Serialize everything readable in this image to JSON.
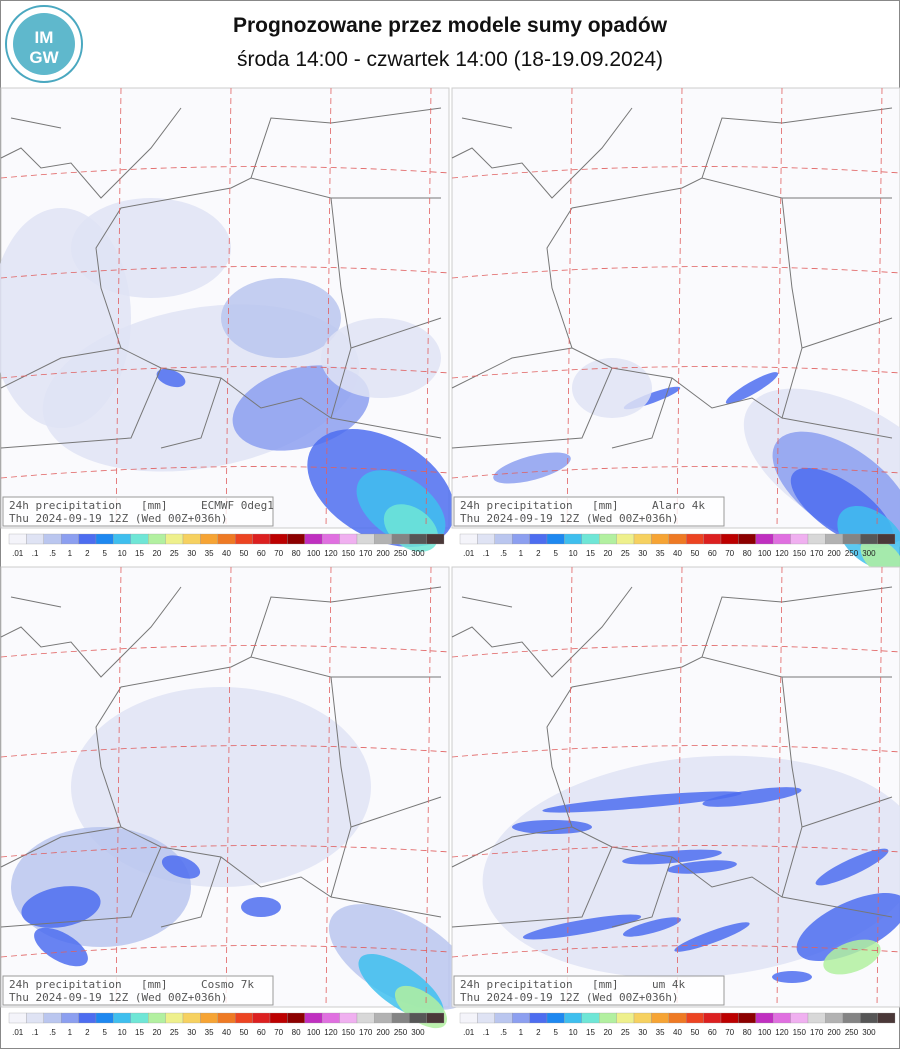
{
  "header": {
    "title": "Prognozowane przez modele sumy opadów",
    "subtitle": "środa 14:00 - czwartek 14:00 (18-19.09.2024)",
    "logo": [
      "IM",
      "GW"
    ]
  },
  "legend": {
    "labels": [
      ".01",
      ".1",
      ".5",
      "1",
      "2",
      "5",
      "10",
      "15",
      "20",
      "25",
      "30",
      "35",
      "40",
      "50",
      "60",
      "70",
      "80",
      "100",
      "120",
      "150",
      "170",
      "200",
      "250",
      "300"
    ],
    "colors": [
      "#f4f4fa",
      "#dfe3f4",
      "#bac6ef",
      "#8c9ff0",
      "#4d6df0",
      "#1e88f0",
      "#3fbfee",
      "#6fe6d6",
      "#b2f0a0",
      "#eef08c",
      "#f6d160",
      "#f6a434",
      "#ee7a24",
      "#ec4422",
      "#dc2020",
      "#bc0000",
      "#8c0000",
      "#c030c0",
      "#e070e0",
      "#f0b0f0",
      "#d8d8d8",
      "#b2b2b2",
      "#848484",
      "#565656",
      "#4a3838"
    ]
  },
  "panels": [
    {
      "label": "24h precipitation",
      "unit": "[mm]",
      "model": "ECMWF 0deg1",
      "valid": "Thu 2024-09-19 12Z (Wed 00Z+036h)"
    },
    {
      "label": "24h precipitation",
      "unit": "[mm]",
      "model": "Alaro 4k",
      "valid": "Thu 2024-09-19 12Z (Wed 00Z+036h)"
    },
    {
      "label": "24h precipitation",
      "unit": "[mm]",
      "model": "Cosmo 7k",
      "valid": "Thu 2024-09-19 12Z (Wed 00Z+036h)"
    },
    {
      "label": "24h precipitation",
      "unit": "[mm]",
      "model": "um 4k",
      "valid": "Thu 2024-09-19 12Z (Wed 00Z+036h)"
    }
  ]
}
